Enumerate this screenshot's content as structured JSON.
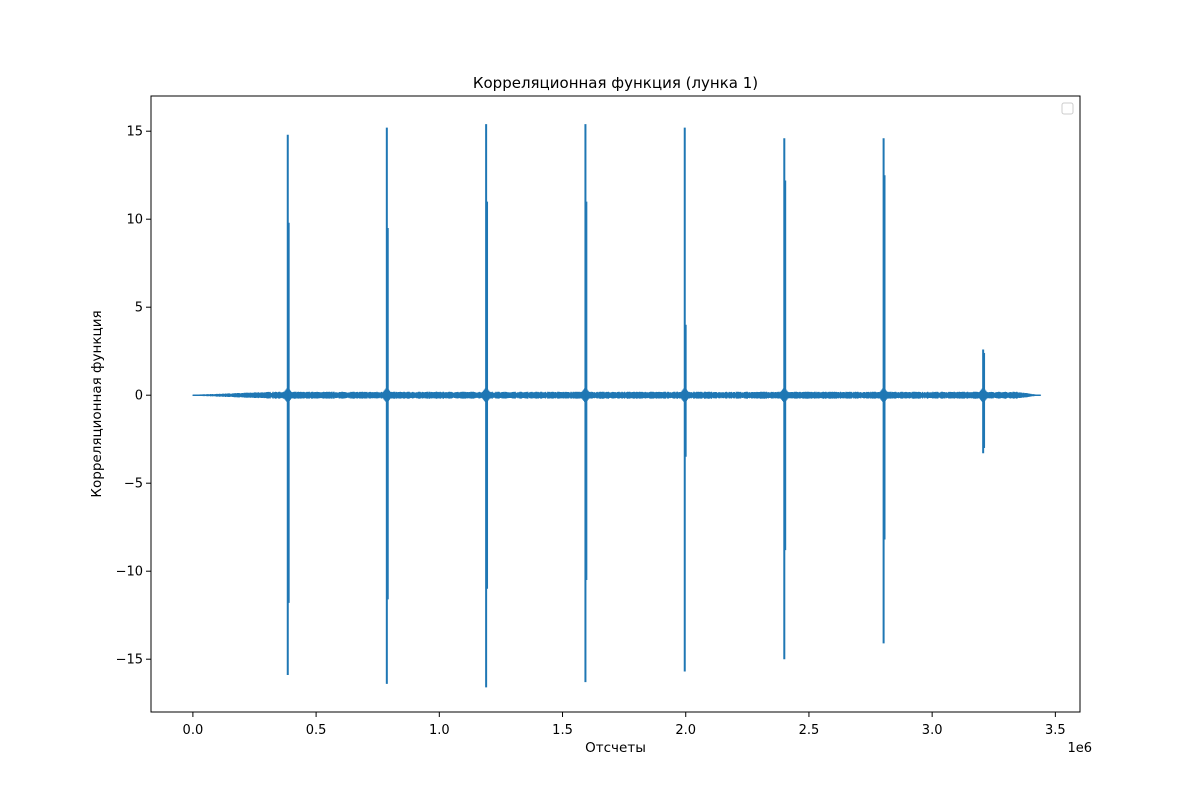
{
  "chart_data": {
    "type": "line",
    "title": "Корреляционная функция (лунка 1)",
    "xlabel": "Отсчеты",
    "ylabel": "Корреляционная функция",
    "x_scale_label": "1e6",
    "xlim": [
      -170000,
      3600000
    ],
    "ylim": [
      -18,
      17
    ],
    "x_ticks": [
      0,
      500000,
      1000000,
      1500000,
      2000000,
      2500000,
      3000000,
      3500000
    ],
    "x_tick_labels": [
      "0.0",
      "0.5",
      "1.0",
      "1.5",
      "2.0",
      "2.5",
      "3.0",
      "3.5"
    ],
    "y_ticks": [
      -15,
      -10,
      -5,
      0,
      5,
      10,
      15
    ],
    "y_tick_labels": [
      "−15",
      "−10",
      "−5",
      "0",
      "5",
      "10",
      "15"
    ],
    "grid": false,
    "legend": "top-right (empty)",
    "colors": {
      "line": "#1f77b4"
    },
    "series": [
      {
        "x_range": [
          0,
          3440000
        ],
        "baseline_noise_amplitude": 0.2,
        "peaks": [
          {
            "x": 385000,
            "max": 14.8,
            "min": -15.9,
            "secondary_max": 9.8,
            "secondary_min": -11.8
          },
          {
            "x": 787000,
            "max": 15.2,
            "min": -16.4,
            "secondary_max": 9.5,
            "secondary_min": -11.6
          },
          {
            "x": 1190000,
            "max": 15.4,
            "min": -16.6,
            "secondary_max": 11.0,
            "secondary_min": -11.0
          },
          {
            "x": 1593000,
            "max": 15.4,
            "min": -16.3,
            "secondary_max": 11.0,
            "secondary_min": -10.5
          },
          {
            "x": 1996000,
            "max": 15.2,
            "min": -15.7,
            "secondary_max": 4.0,
            "secondary_min": -3.5
          },
          {
            "x": 2400000,
            "max": 14.6,
            "min": -15.0,
            "secondary_max": 12.2,
            "secondary_min": -8.8
          },
          {
            "x": 2803000,
            "max": 14.6,
            "min": -14.1,
            "secondary_max": 12.5,
            "secondary_min": -8.2
          },
          {
            "x": 3207000,
            "max": 2.6,
            "min": -3.3,
            "secondary_max": 2.4,
            "secondary_min": -3.0
          }
        ]
      }
    ]
  }
}
